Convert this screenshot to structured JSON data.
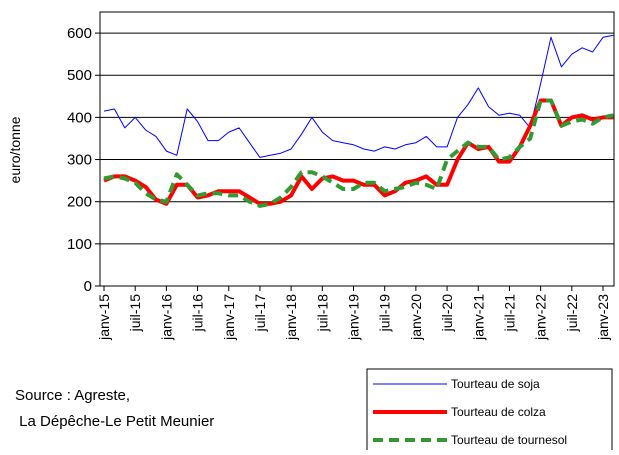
{
  "chart_data": {
    "type": "line",
    "y_label": "euro/tonne",
    "annotations": [
      "Source : Agreste,",
      " La Dépêche-Le Petit Meunier"
    ],
    "categories": [
      "janv-15",
      null,
      null,
      "juil-15",
      null,
      null,
      "janv-16",
      null,
      null,
      "juil-16",
      null,
      null,
      "janv-17",
      null,
      null,
      "juil-17",
      null,
      null,
      "janv-18",
      null,
      null,
      "juil-18",
      null,
      null,
      "janv-19",
      null,
      null,
      "juil-19",
      null,
      null,
      "janv-20",
      null,
      null,
      "juil-20",
      null,
      null,
      "janv-21",
      null,
      null,
      "juil-21",
      null,
      null,
      "janv-22",
      null,
      null,
      "juil-22",
      null,
      null,
      "janv-23",
      null
    ],
    "series": [
      {
        "name": "Tourteau de soja",
        "color": "#0000ff",
        "values": [
          415,
          420,
          375,
          400,
          370,
          355,
          320,
          310,
          420,
          390,
          345,
          345,
          365,
          375,
          340,
          305,
          310,
          315,
          325,
          360,
          400,
          365,
          345,
          340,
          335,
          325,
          320,
          330,
          325,
          335,
          340,
          355,
          330,
          330,
          400,
          430,
          470,
          425,
          405,
          410,
          405,
          375,
          480,
          590,
          520,
          550,
          565,
          555,
          590,
          595
        ]
      },
      {
        "name": "Tourteau de colza",
        "color": "#ff0000",
        "values": [
          250,
          260,
          260,
          250,
          235,
          205,
          195,
          240,
          240,
          210,
          215,
          225,
          225,
          225,
          210,
          195,
          195,
          200,
          215,
          260,
          230,
          255,
          260,
          250,
          250,
          240,
          240,
          215,
          225,
          245,
          250,
          260,
          240,
          240,
          300,
          340,
          325,
          330,
          295,
          295,
          330,
          380,
          440,
          440,
          380,
          400,
          405,
          395,
          400,
          400
        ]
      },
      {
        "name": "Tourteau de tournesol",
        "color": "#339933",
        "values": [
          255,
          260,
          255,
          245,
          220,
          205,
          200,
          265,
          240,
          215,
          220,
          220,
          215,
          215,
          200,
          190,
          195,
          210,
          235,
          270,
          270,
          260,
          245,
          230,
          230,
          245,
          245,
          225,
          230,
          235,
          245,
          240,
          230,
          300,
          320,
          340,
          330,
          330,
          300,
          305,
          330,
          350,
          440,
          440,
          380,
          390,
          395,
          385,
          400,
          405
        ]
      }
    ],
    "ylim": [
      0,
      650
    ],
    "yticks": [
      0,
      100,
      200,
      300,
      400,
      500,
      600
    ],
    "grid": true
  }
}
